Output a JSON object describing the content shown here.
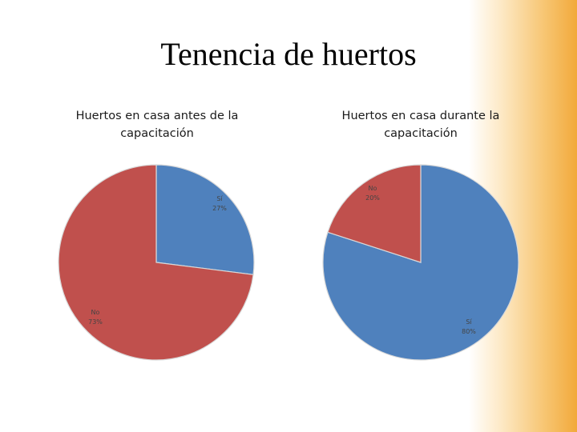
{
  "slide": {
    "title": "Tenencia de huertos"
  },
  "chart_data": [
    {
      "type": "pie",
      "title": "Huertos en casa antes de la capacitación",
      "slices": [
        {
          "label": "Sí",
          "value": 27,
          "value_label": "27%",
          "color": "#4f81bd"
        },
        {
          "label": "No",
          "value": 73,
          "value_label": "73%",
          "color": "#c0504d"
        }
      ]
    },
    {
      "type": "pie",
      "title": "Huertos en casa durante la capacitación",
      "slices": [
        {
          "label": "Sí",
          "value": 80,
          "value_label": "80%",
          "color": "#4f81bd"
        },
        {
          "label": "No",
          "value": 20,
          "value_label": "20%",
          "color": "#c0504d"
        }
      ]
    }
  ]
}
